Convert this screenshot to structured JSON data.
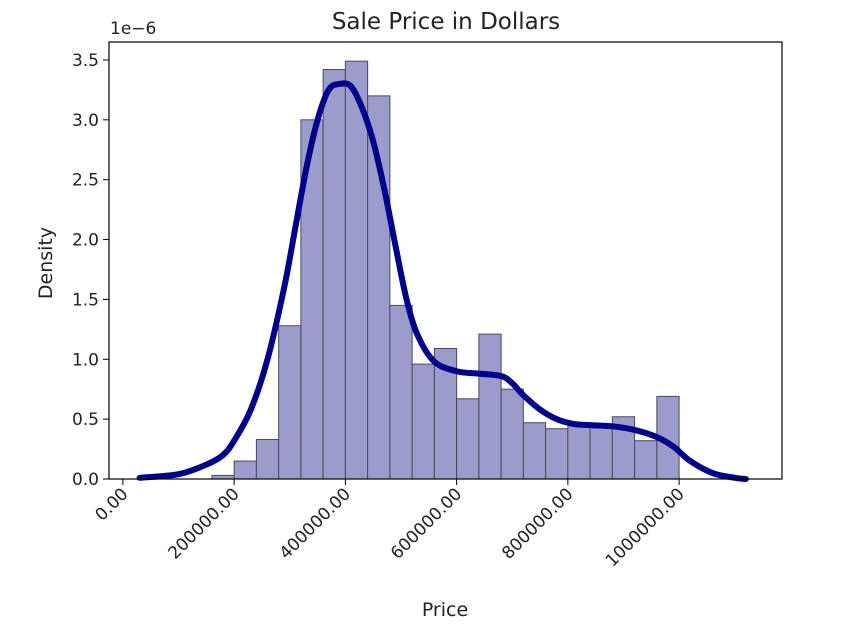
{
  "chart_data": {
    "type": "bar",
    "title": "Sale Price in Dollars",
    "xlabel": "Price",
    "ylabel": "Density",
    "y_offset_label": "1e−6",
    "xlim": [
      -25000,
      1185000
    ],
    "ylim": [
      0,
      3.65
    ],
    "x_ticks": [
      0,
      200000,
      400000,
      600000,
      800000,
      1000000
    ],
    "x_tick_labels": [
      "0.00",
      "200000.00",
      "400000.00",
      "600000.00",
      "800000.00",
      "1000000.00"
    ],
    "y_ticks": [
      0,
      0.5,
      1.0,
      1.5,
      2.0,
      2.5,
      3.0,
      3.5
    ],
    "y_tick_labels": [
      "0.0",
      "0.5",
      "1.0",
      "1.5",
      "2.0",
      "2.5",
      "3.0",
      "3.5"
    ],
    "grid": false,
    "bins": [
      {
        "x0": 160000,
        "x1": 200000,
        "density": 0.03
      },
      {
        "x0": 200000,
        "x1": 240000,
        "density": 0.15
      },
      {
        "x0": 240000,
        "x1": 280000,
        "density": 0.33
      },
      {
        "x0": 280000,
        "x1": 320000,
        "density": 1.28
      },
      {
        "x0": 320000,
        "x1": 360000,
        "density": 3.0
      },
      {
        "x0": 360000,
        "x1": 400000,
        "density": 3.42
      },
      {
        "x0": 400000,
        "x1": 440000,
        "density": 3.49
      },
      {
        "x0": 440000,
        "x1": 480000,
        "density": 3.2
      },
      {
        "x0": 480000,
        "x1": 520000,
        "density": 1.45
      },
      {
        "x0": 520000,
        "x1": 560000,
        "density": 0.96
      },
      {
        "x0": 560000,
        "x1": 600000,
        "density": 1.09
      },
      {
        "x0": 600000,
        "x1": 640000,
        "density": 0.67
      },
      {
        "x0": 640000,
        "x1": 680000,
        "density": 1.21
      },
      {
        "x0": 680000,
        "x1": 720000,
        "density": 0.75
      },
      {
        "x0": 720000,
        "x1": 760000,
        "density": 0.47
      },
      {
        "x0": 760000,
        "x1": 800000,
        "density": 0.42
      },
      {
        "x0": 800000,
        "x1": 840000,
        "density": 0.45
      },
      {
        "x0": 840000,
        "x1": 880000,
        "density": 0.45
      },
      {
        "x0": 880000,
        "x1": 920000,
        "density": 0.52
      },
      {
        "x0": 920000,
        "x1": 960000,
        "density": 0.32
      },
      {
        "x0": 960000,
        "x1": 1000000,
        "density": 0.69
      }
    ],
    "kde": {
      "x": [
        30000,
        100000,
        150000,
        180000,
        200000,
        230000,
        260000,
        290000,
        310000,
        330000,
        350000,
        370000,
        390000,
        410000,
        430000,
        450000,
        470000,
        490000,
        510000,
        530000,
        560000,
        600000,
        640000,
        680000,
        700000,
        720000,
        750000,
        780000,
        810000,
        840000,
        880000,
        920000,
        960000,
        990000,
        1020000,
        1060000,
        1100000,
        1120000
      ],
      "y": [
        0.01,
        0.04,
        0.12,
        0.2,
        0.32,
        0.58,
        1.0,
        1.6,
        2.1,
        2.6,
        3.0,
        3.25,
        3.3,
        3.28,
        3.1,
        2.82,
        2.42,
        1.95,
        1.5,
        1.2,
        0.98,
        0.9,
        0.88,
        0.86,
        0.8,
        0.7,
        0.58,
        0.5,
        0.46,
        0.45,
        0.44,
        0.41,
        0.35,
        0.27,
        0.15,
        0.05,
        0.01,
        0.0
      ]
    },
    "colors": {
      "bar_fill": "#9a9ccb",
      "bar_edge": "#4a4a5a",
      "kde_line": "#00008b",
      "axis": "#000000"
    }
  }
}
